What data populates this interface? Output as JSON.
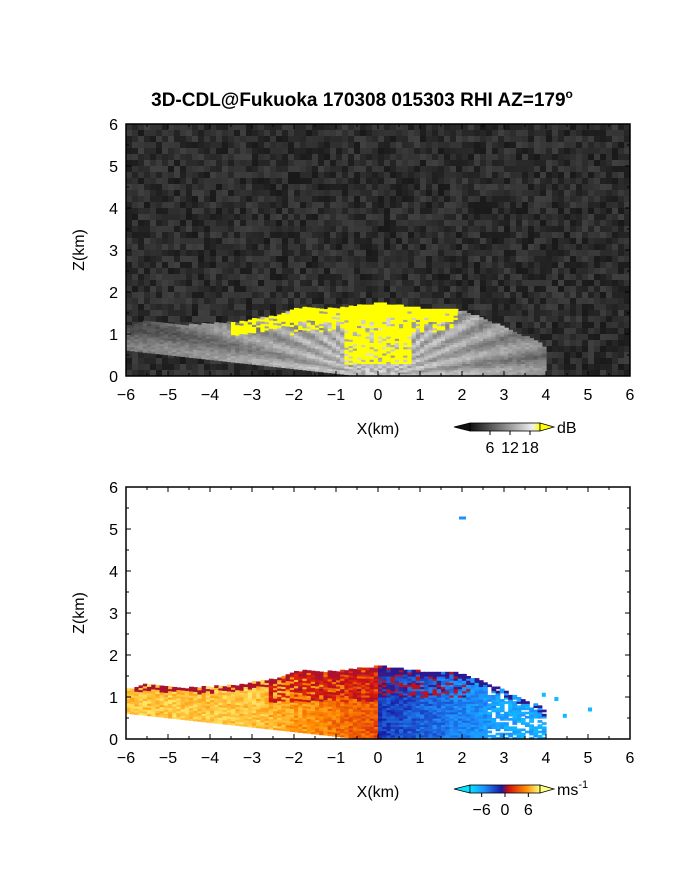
{
  "chart_data": [
    {
      "type": "heatmap",
      "title": "3D-CDL@Fukuoka 170308 015303 RHI AZ=179",
      "title_superscript": "o",
      "xlabel": "X(km)",
      "ylabel": "Z(km)",
      "xlim": [
        -6,
        6
      ],
      "ylim": [
        0,
        6
      ],
      "xticks": [
        "-6",
        "-5",
        "-4",
        "-3",
        "-2",
        "-1",
        "0",
        "1",
        "2",
        "3",
        "4",
        "5",
        "6"
      ],
      "yticks": [
        "0",
        "1",
        "2",
        "3",
        "4",
        "5",
        "6"
      ],
      "grid": false,
      "colorbar": {
        "label": "dB",
        "ticks": [
          "6",
          "12",
          "18"
        ],
        "tick_values": [
          6,
          12,
          18
        ],
        "range": [
          0,
          21
        ]
      },
      "background_color": "#262626",
      "saturation_color": "#ffff00",
      "echo_top_profile_km": [
        {
          "x": -6.0,
          "z": 1.15
        },
        {
          "x": -5.5,
          "z": 1.3
        },
        {
          "x": -4.5,
          "z": 1.2
        },
        {
          "x": -3.5,
          "z": 1.25
        },
        {
          "x": -2.5,
          "z": 1.4
        },
        {
          "x": -1.8,
          "z": 1.62
        },
        {
          "x": -1.0,
          "z": 1.58
        },
        {
          "x": 0.0,
          "z": 1.72
        },
        {
          "x": 1.0,
          "z": 1.6
        },
        {
          "x": 1.8,
          "z": 1.6
        },
        {
          "x": 2.5,
          "z": 1.35
        },
        {
          "x": 3.2,
          "z": 1.05
        },
        {
          "x": 3.8,
          "z": 0.8
        },
        {
          "x": 4.0,
          "z": 0.62
        }
      ]
    },
    {
      "type": "heatmap",
      "xlabel": "X(km)",
      "ylabel": "Z(km)",
      "xlim": [
        -6,
        6
      ],
      "ylim": [
        0,
        6
      ],
      "xticks": [
        "-6",
        "-5",
        "-4",
        "-3",
        "-2",
        "-1",
        "0",
        "1",
        "2",
        "3",
        "4",
        "5",
        "6"
      ],
      "yticks": [
        "0",
        "1",
        "2",
        "3",
        "4",
        "5",
        "6"
      ],
      "grid": false,
      "colorbar": {
        "label": "ms",
        "label_superscript": "-1",
        "ticks": [
          "-6",
          "0",
          "6"
        ],
        "tick_values": [
          -6,
          0,
          6
        ],
        "range": [
          -9,
          9
        ]
      },
      "background_color": "#ffffff",
      "velocity_field": {
        "approaching_side": "x > 0 (negative, blue)",
        "receding_side": "x < 0 (positive, yellow-orange)",
        "upper_layer_km": [
          1.0,
          1.7
        ],
        "upper_layer_value_ms": 0
      },
      "isolated_echo": {
        "x": 2.0,
        "z": 5.25,
        "value_ms": -5
      }
    }
  ]
}
